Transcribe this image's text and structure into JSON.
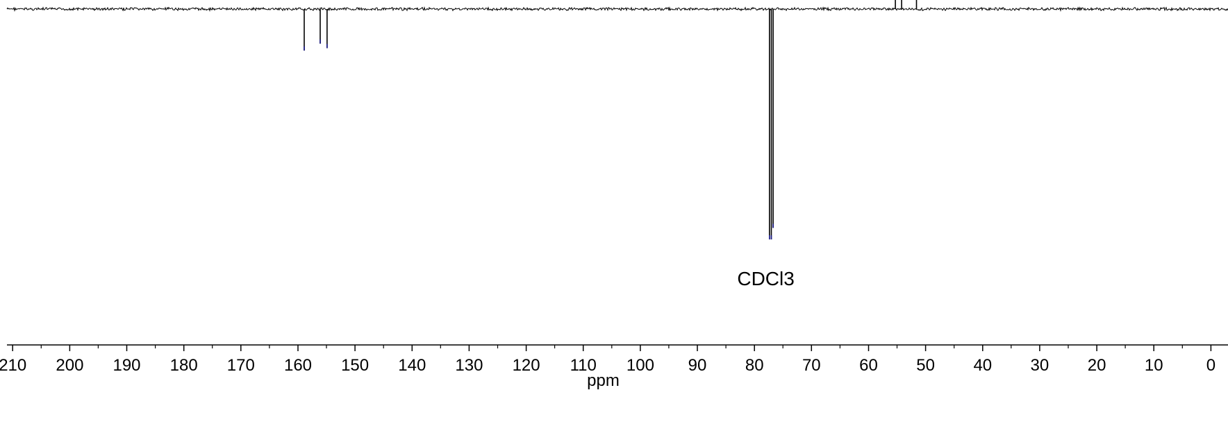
{
  "chart_data": {
    "type": "line",
    "title": "",
    "xlabel": "ppm",
    "ylabel": "",
    "x_reversed": true,
    "xlim": [
      211,
      -3
    ],
    "ylim": [
      -1.0,
      0.05
    ],
    "grid": false,
    "x_ticks": [
      210,
      200,
      190,
      180,
      170,
      160,
      150,
      140,
      130,
      120,
      110,
      100,
      90,
      80,
      70,
      60,
      50,
      40,
      30,
      20,
      10,
      0
    ],
    "x_tick_labels": [
      "210",
      "200",
      "190",
      "180",
      "170",
      "160",
      "150",
      "140",
      "130",
      "120",
      "110",
      "100",
      "90",
      "80",
      "70",
      "60",
      "50",
      "40",
      "30",
      "20",
      "10",
      "0"
    ],
    "peaks": [
      {
        "ppm": 158.9,
        "intensity": -0.18
      },
      {
        "ppm": 156.1,
        "intensity": -0.15
      },
      {
        "ppm": 154.9,
        "intensity": -0.17
      },
      {
        "ppm": 77.36,
        "intensity": -1.0
      },
      {
        "ppm": 77.04,
        "intensity": -1.0
      },
      {
        "ppm": 76.72,
        "intensity": -0.95
      },
      {
        "ppm": 55.3,
        "intensity": 0.05
      },
      {
        "ppm": 54.2,
        "intensity": 0.04
      },
      {
        "ppm": 51.6,
        "intensity": 0.05
      }
    ],
    "annotations": [
      {
        "text": "CDCl3",
        "ppm": 78.0
      }
    ],
    "series_color": "#000000",
    "peak_tip_color": "#1a1a8c"
  }
}
